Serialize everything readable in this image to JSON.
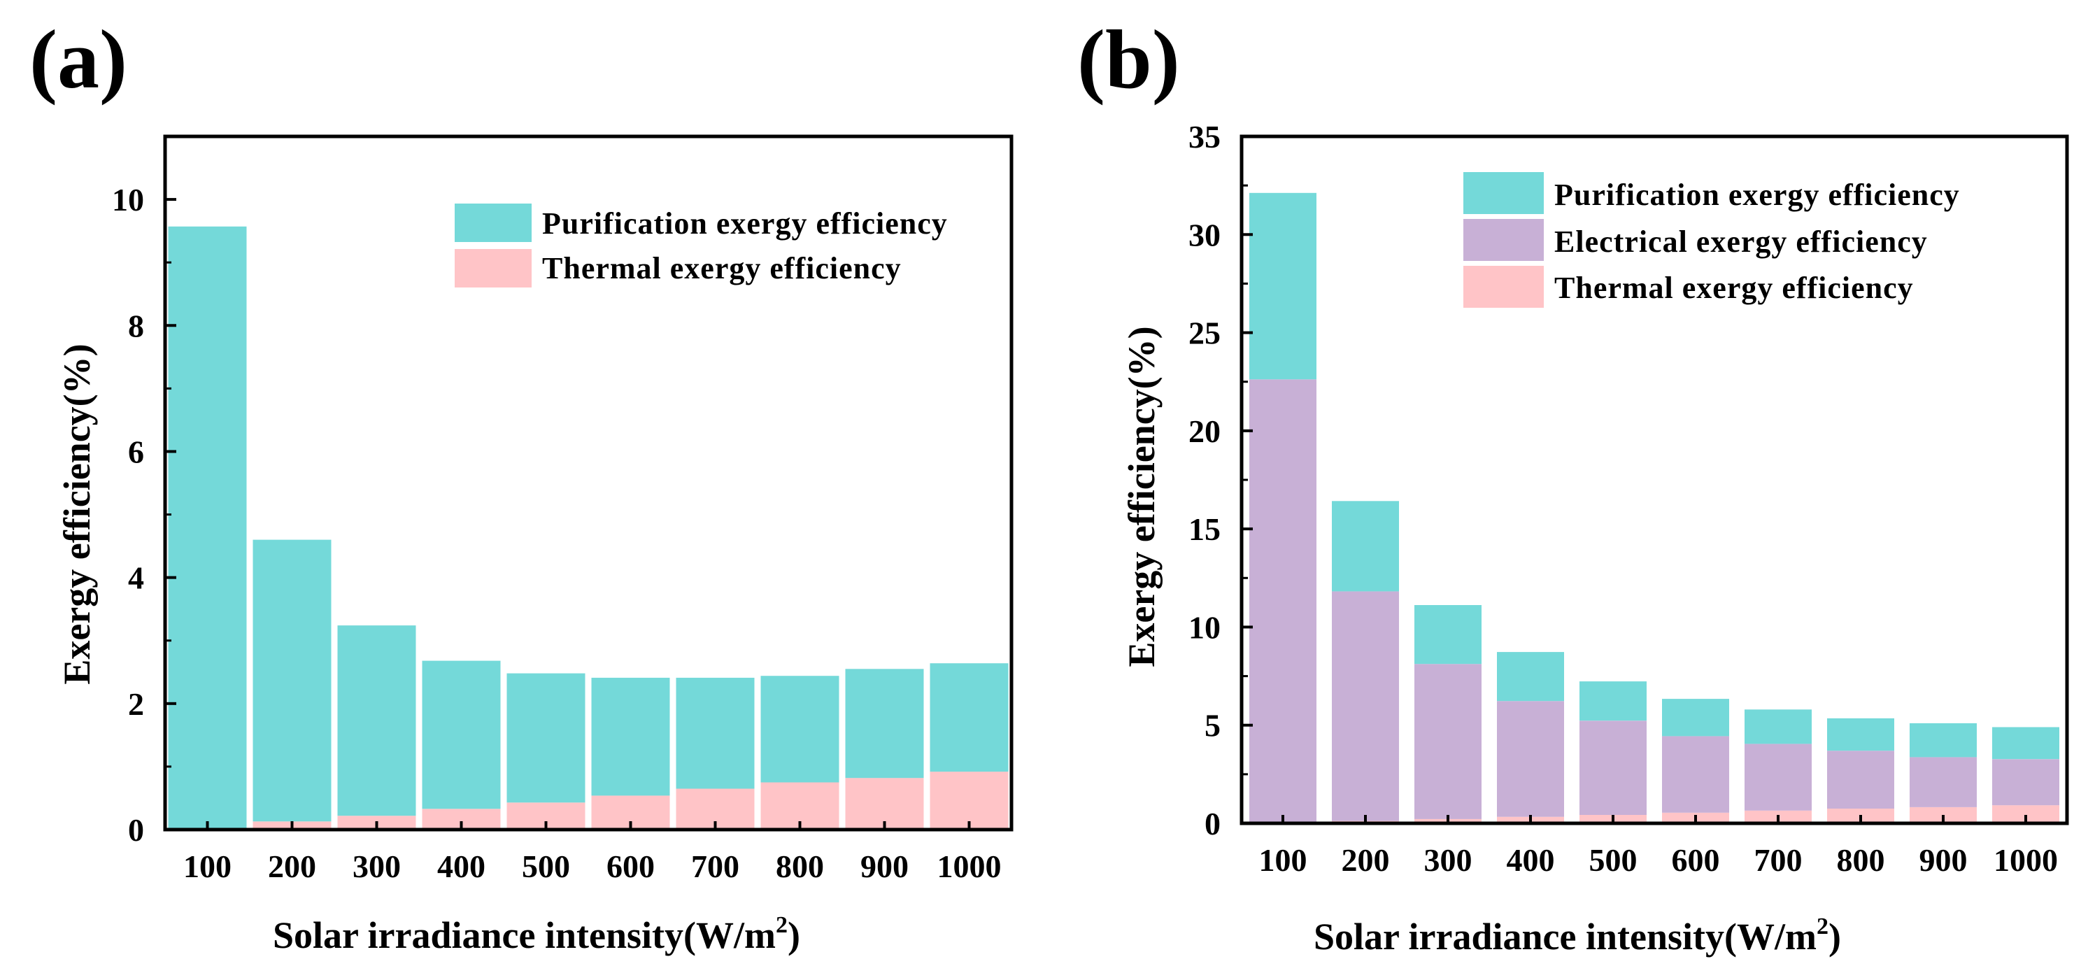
{
  "colors": {
    "purification": "#74D9D9",
    "electrical": "#C8B0D6",
    "thermal": "#FFC4C7",
    "axis": "#000000"
  },
  "chart_data": [
    {
      "panel_label": "(a)",
      "type": "bar",
      "stacked": true,
      "categories": [
        "100",
        "200",
        "300",
        "400",
        "500",
        "600",
        "700",
        "800",
        "900",
        "1000"
      ],
      "series": [
        {
          "name": "Thermal exergy efficiency",
          "color_key": "thermal",
          "values": [
            0.02,
            0.13,
            0.22,
            0.33,
            0.43,
            0.54,
            0.65,
            0.75,
            0.82,
            0.92
          ]
        },
        {
          "name": "Purification exergy efficiency",
          "color_key": "purification",
          "values": [
            9.55,
            4.47,
            3.02,
            2.35,
            2.05,
            1.87,
            1.76,
            1.69,
            1.73,
            1.72
          ]
        }
      ],
      "legend": [
        "Purification exergy efficiency",
        "Thermal exergy efficiency"
      ],
      "legend_position": "top-right",
      "xlabel": "Solar irradiance intensity(W/m",
      "xlabel_sup": "2",
      "xlabel_end": ")",
      "ylabel": "Exergy efficiency(%)",
      "ylim": [
        0,
        11
      ],
      "yticks": [
        0,
        2,
        4,
        6,
        8,
        10
      ]
    },
    {
      "panel_label": "(b)",
      "type": "bar",
      "stacked": true,
      "categories": [
        "100",
        "200",
        "300",
        "400",
        "500",
        "600",
        "700",
        "800",
        "900",
        "1000"
      ],
      "series": [
        {
          "name": "Thermal exergy efficiency",
          "color_key": "thermal",
          "values": [
            0.02,
            0.12,
            0.22,
            0.33,
            0.43,
            0.54,
            0.65,
            0.75,
            0.82,
            0.92
          ]
        },
        {
          "name": "Electrical exergy efficiency",
          "color_key": "electrical",
          "values": [
            22.6,
            11.7,
            7.9,
            5.9,
            4.8,
            3.9,
            3.4,
            2.95,
            2.55,
            2.35
          ]
        },
        {
          "name": "Purification exergy efficiency",
          "color_key": "purification",
          "values": [
            9.5,
            4.6,
            3.0,
            2.5,
            2.0,
            1.9,
            1.75,
            1.65,
            1.73,
            1.63
          ]
        }
      ],
      "legend": [
        "Purification exergy efficiency",
        "Electrical exergy efficiency",
        "Thermal exergy efficiency"
      ],
      "legend_position": "top-right",
      "xlabel": "Solar irradiance intensity(W/m",
      "xlabel_sup": "2",
      "xlabel_end": ")",
      "ylabel": "Exergy efficiency(%)",
      "ylim": [
        0,
        35
      ],
      "yticks": [
        0,
        5,
        10,
        15,
        20,
        25,
        30,
        35
      ]
    }
  ]
}
